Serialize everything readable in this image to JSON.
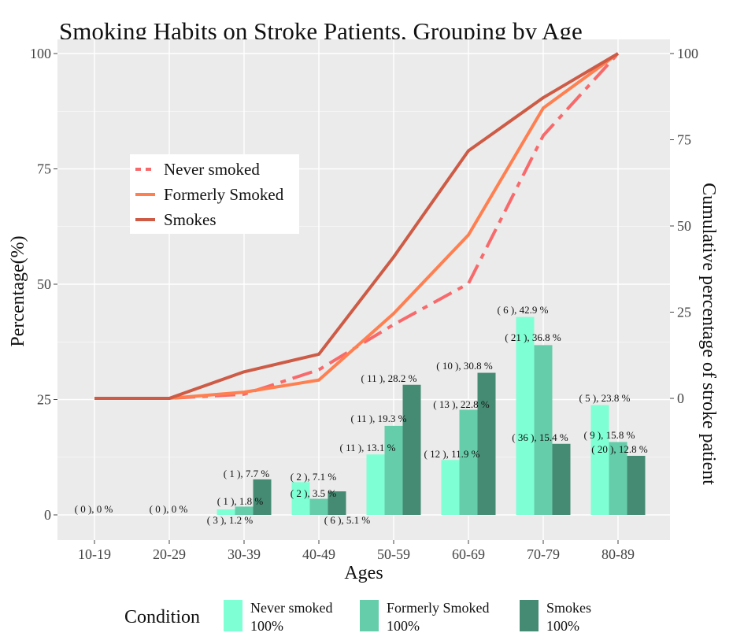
{
  "chart_data": {
    "type": "bar+line",
    "title": "Smoking Habits on Stroke Patients, Grouping by Age",
    "xlabel": "Ages",
    "ylabel": "Percentage(%)",
    "y2label": "Cumulative percentage of stroke patient",
    "categories": [
      "10-19",
      "20-29",
      "30-39",
      "40-49",
      "50-59",
      "60-69",
      "70-79",
      "80-89"
    ],
    "ylim": [
      0,
      100
    ],
    "yticks": [
      "0",
      "25",
      "50",
      "75",
      "100"
    ],
    "y2lim": [
      0,
      100
    ],
    "y2ticks": [
      "0",
      "25",
      "50",
      "75",
      "100"
    ],
    "series": [
      {
        "name": "Never smoked",
        "color": "#7FFFD4",
        "values": [
          0,
          0,
          1.2,
          7.1,
          13.1,
          11.9,
          42.9,
          23.8
        ],
        "labels": [
          "( 0 ), 0 %",
          "( 0 ), 0 %",
          "( 3 ), 1.2 %",
          "( 2 ), 7.1 %",
          "( 11 ), 13.1 %",
          "( 12 ), 11.9 %",
          "( 6 ), 42.9 %",
          "( 5 ), 23.8 %"
        ]
      },
      {
        "name": "Formerly Smoked",
        "color": "#66CDAA",
        "values": [
          0,
          0,
          1.8,
          3.5,
          19.3,
          22.8,
          36.8,
          15.8
        ],
        "labels": [
          "",
          "",
          "( 1 ), 1.8 %",
          "( 2 ), 3.5 %",
          "( 11 ), 19.3 %",
          "( 13 ), 22.8 %",
          "( 21 ), 36.8 %",
          "( 9 ), 15.8 %"
        ]
      },
      {
        "name": "Smokes",
        "color": "#458B74",
        "values": [
          0,
          0,
          7.7,
          5.1,
          28.2,
          30.8,
          15.4,
          12.8
        ],
        "labels": [
          "",
          "",
          "( 1 ), 7.7 %",
          "( 6 ), 5.1 %",
          "( 11 ), 28.2 %",
          "( 10 ), 30.8 %",
          "( 36 ), 15.4 %",
          "( 20 ), 12.8 %"
        ]
      }
    ],
    "lines": [
      {
        "name": "Never smoked",
        "color": "#F8696B",
        "style": "dashed",
        "values": [
          0,
          0,
          1.2,
          8.3,
          21.4,
          33.3,
          76.2,
          100
        ]
      },
      {
        "name": "Formerly Smoked",
        "color": "#FF7F50",
        "style": "solid",
        "values": [
          0,
          0,
          1.8,
          5.3,
          24.6,
          47.4,
          84.2,
          100
        ]
      },
      {
        "name": "Smokes",
        "color": "#CD5B45",
        "style": "solid",
        "values": [
          0,
          0,
          7.7,
          12.8,
          41.0,
          71.8,
          87.2,
          100
        ]
      }
    ],
    "line_legend": {
      "position": "top-left",
      "entries": [
        "Never smoked",
        "Formerly Smoked",
        "Smokes"
      ]
    },
    "bar_legend": {
      "position": "bottom",
      "title": "Condition",
      "entries": [
        {
          "name": "Never smoked",
          "sub": "100%"
        },
        {
          "name": "Formerly Smoked",
          "sub": "100%"
        },
        {
          "name": "Smokes",
          "sub": "100%"
        }
      ]
    },
    "grid": true
  }
}
